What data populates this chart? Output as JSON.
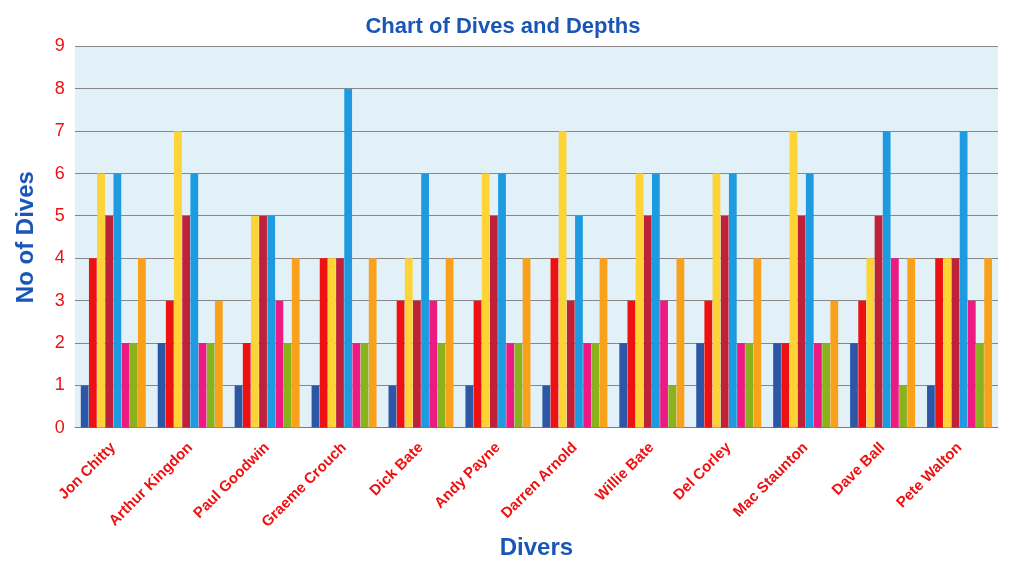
{
  "chart_data": {
    "type": "bar",
    "title": "Chart of Dives and Depths",
    "xlabel": "Divers",
    "ylabel": "No of Dives",
    "categories": [
      "Jon Chitty",
      "Arthur Kingdon",
      "Paul Goodwin",
      "Graeme Crouch",
      "Dick Bate",
      "Andy Payne",
      "Darren Arnold",
      "Willie Bate",
      "Del Corley",
      "Mac Staunton",
      "Dave Ball",
      "Pete Walton"
    ],
    "series": [
      {
        "color": "#2e56a6",
        "values": [
          1,
          2,
          1,
          1,
          1,
          1,
          1,
          2,
          2,
          2,
          2,
          1
        ]
      },
      {
        "color": "#ee1111",
        "values": [
          4,
          3,
          2,
          4,
          3,
          3,
          4,
          3,
          3,
          2,
          3,
          4
        ]
      },
      {
        "color": "#fdd335",
        "values": [
          6,
          7,
          5,
          4,
          4,
          6,
          7,
          6,
          6,
          7,
          4,
          4
        ]
      },
      {
        "color": "#c0213a",
        "values": [
          5,
          5,
          5,
          4,
          3,
          5,
          3,
          5,
          5,
          5,
          5,
          4
        ]
      },
      {
        "color": "#1e9be0",
        "values": [
          6,
          6,
          5,
          8,
          6,
          6,
          5,
          6,
          6,
          6,
          7,
          7
        ]
      },
      {
        "color": "#ec1a82",
        "values": [
          2,
          2,
          3,
          2,
          3,
          2,
          2,
          3,
          2,
          2,
          4,
          3
        ]
      },
      {
        "color": "#8ab21c",
        "values": [
          2,
          2,
          2,
          2,
          2,
          2,
          2,
          1,
          2,
          2,
          1,
          2
        ]
      },
      {
        "color": "#f9a11b",
        "values": [
          4,
          3,
          4,
          4,
          4,
          4,
          4,
          4,
          4,
          3,
          4,
          4
        ]
      }
    ],
    "ylim": [
      0,
      9
    ],
    "yticks": [
      0,
      1,
      2,
      3,
      4,
      5,
      6,
      7,
      8,
      9
    ],
    "grid": "y",
    "legend": false
  }
}
